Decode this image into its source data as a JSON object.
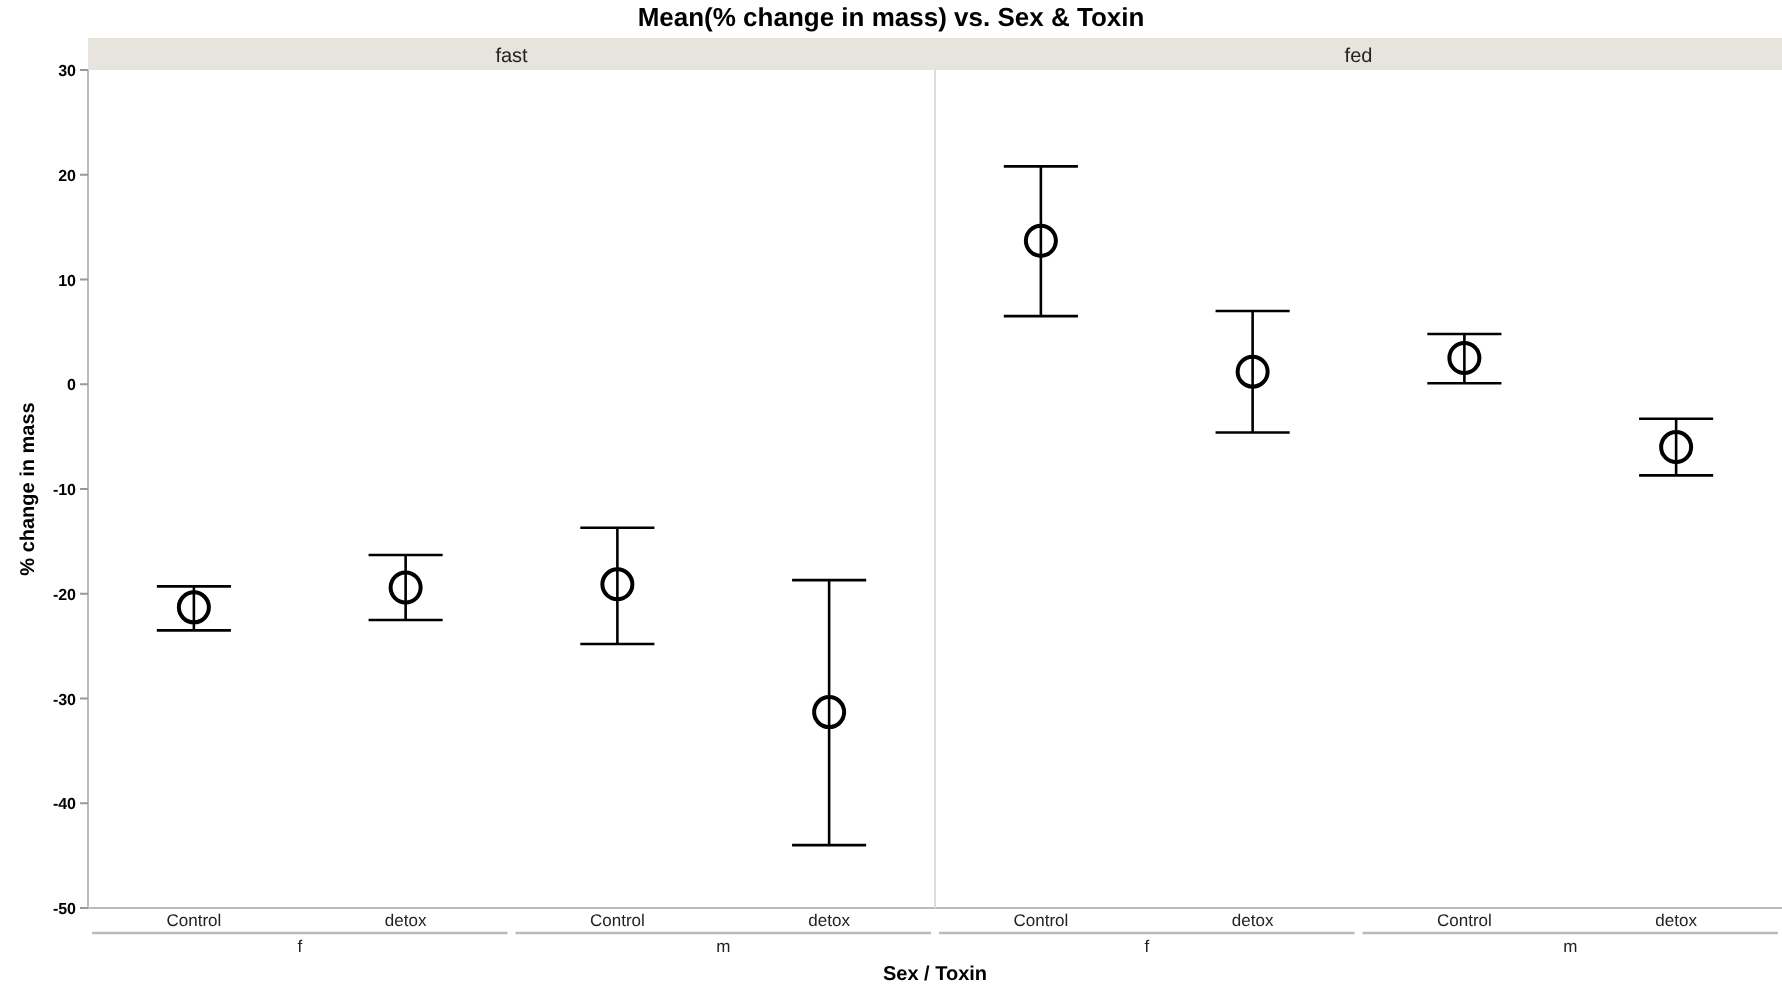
{
  "chart_data": [
    {
      "type": "scatter",
      "title": "Mean(% change in mass) vs. Sex & Toxin",
      "subtitle": "fast",
      "xlabel": "Sex / Toxin",
      "ylabel": "% change in mass",
      "categories": [
        "Control",
        "detox",
        "Control",
        "detox"
      ],
      "annotations": [
        "f",
        "m"
      ],
      "series": [
        {
          "color": "#000000",
          "values": [
            -21.3,
            -19.4,
            -19.1,
            -31.3
          ],
          "errors": [
            [
              -23.5,
              -19.3
            ],
            [
              -22.5,
              -16.3
            ],
            [
              -24.8,
              -13.7
            ],
            [
              -44.0,
              -18.7
            ]
          ]
        }
      ],
      "ylim": [
        -50,
        30
      ],
      "yticks": [
        -50,
        -40,
        -30,
        -20,
        -10,
        0,
        10,
        20,
        30
      ],
      "marker": "circle",
      "grid": false
    },
    {
      "type": "scatter",
      "subtitle": "fed",
      "categories": [
        "Control",
        "detox",
        "Control",
        "detox"
      ],
      "annotations": [
        "f",
        "m"
      ],
      "series": [
        {
          "color": "#000000",
          "values": [
            13.7,
            1.2,
            2.5,
            -6.0
          ],
          "errors": [
            [
              6.5,
              20.8
            ],
            [
              -4.6,
              7.0
            ],
            [
              0.1,
              4.8
            ],
            [
              -8.7,
              -3.3
            ]
          ]
        }
      ],
      "ylim": [
        -50,
        30
      ],
      "yticks": [
        -50,
        -40,
        -30,
        -20,
        -10,
        0,
        10,
        20,
        30
      ],
      "tick_labels": "x",
      "marker": "circle",
      "grid": false
    }
  ]
}
